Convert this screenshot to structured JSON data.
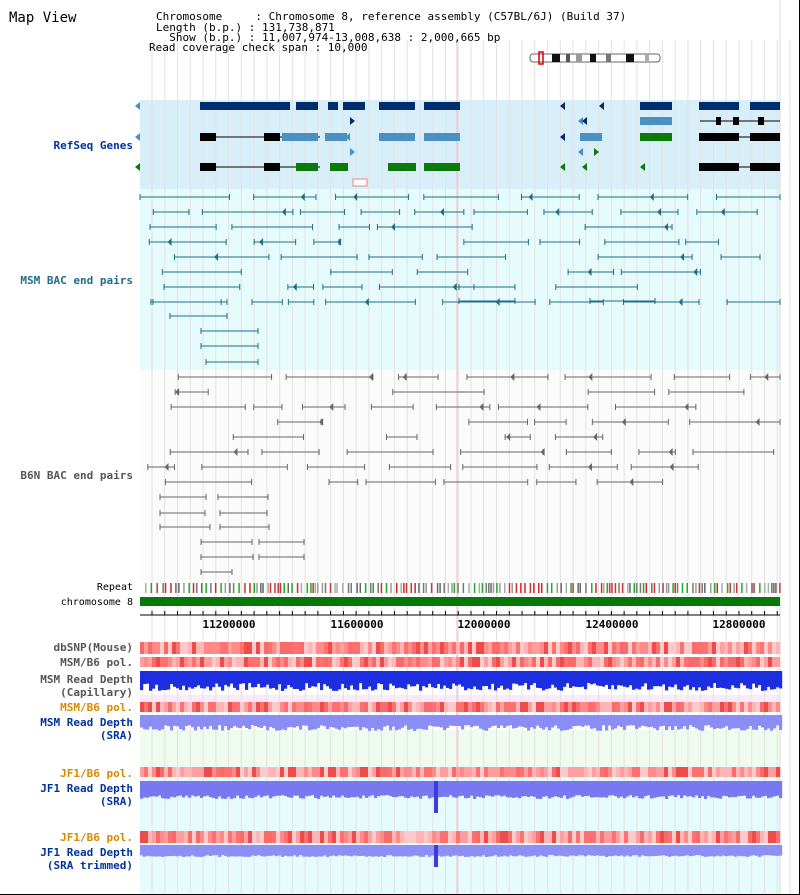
{
  "view_title": "Map View",
  "info": {
    "chromosome_line": "Chromosome     : Chromosome 8, reference assembly (C57BL/6J) (Build 37)",
    "length_line": "Length (b.p.) : 131,738,871",
    "show_line": "  Show (b.p.) : 11,007,974-13,008,638 : 2,000,665 bp",
    "read_line": "Read coverage check span : 10,000"
  },
  "tracks": {
    "refseq": "RefSeq Genes",
    "msm_bac": "MSM BAC end pairs",
    "b6n_bac": "B6N BAC end pairs",
    "repeat": "Repeat",
    "chromosome": "chromosome 8",
    "dbsnp": "dbSNP(Mouse)",
    "msm_b6_pol_1": "MSM/B6 pol.",
    "msm_depth_cap_1": "MSM Read Depth",
    "msm_depth_cap_2": "(Capillary)",
    "msm_b6_pol_2": "MSM/B6 pol.",
    "msm_depth_sra_1": "MSM Read Depth",
    "msm_depth_sra_2": "(SRA)",
    "jf1_b6_pol_1": "JF1/B6 pol.",
    "jf1_depth_sra_1": "JF1 Read Depth",
    "jf1_depth_sra_2": "(SRA)",
    "jf1_b6_pol_2": "JF1/B6 pol.",
    "jf1_depth_trim_1": "JF1 Read Depth",
    "jf1_depth_trim_2": "(SRA trimmed)"
  },
  "axis": {
    "ticks": [
      "11200000",
      "11600000",
      "12000000",
      "12400000",
      "12800000"
    ]
  },
  "colors": {
    "refseq_bg": "#d8eef9",
    "bac_bg": "#e6fbfb",
    "gene_dark": "#002d6e",
    "gene_mid": "#4a90c0",
    "gene_green": "#0a7a0a",
    "msm_line": "#1e6e8a",
    "b6n_line": "#666666",
    "chromosome_bar": "#087808",
    "label_blue": "#00349c",
    "label_teal": "#1e6e8a",
    "label_gray": "#555555",
    "label_orange": "#d88a00"
  }
}
